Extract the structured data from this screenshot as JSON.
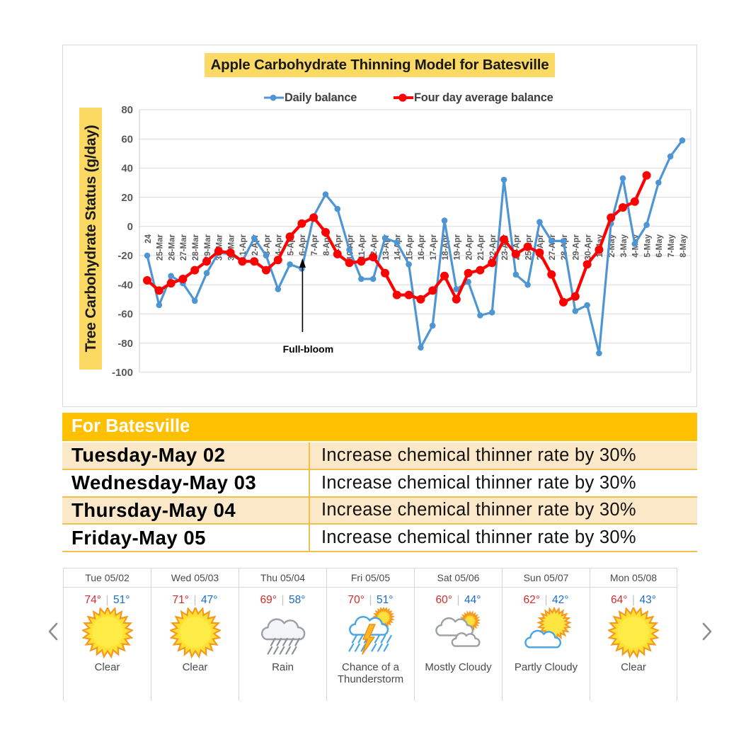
{
  "chart": {
    "title": "Apple Carbohydrate Thinning Model for Batesville",
    "y_axis_label": "Tree Carbohydrate Status (g/day)",
    "annotation_label": "Full-bloom",
    "legend": {
      "daily": "Daily balance",
      "avg": "Four day average balance"
    }
  },
  "chart_data": {
    "type": "line",
    "title": "Apple Carbohydrate Thinning Model for Batesville",
    "ylabel": "Tree Carbohydrate Status (g/day)",
    "xlabel": "",
    "ylim": [
      -100,
      80
    ],
    "ytick_step": 20,
    "grid": true,
    "legend_position": "top",
    "categories": [
      "24",
      "25-Mar",
      "26-Mar",
      "27-Mar",
      "28-Mar",
      "29-Mar",
      "30-Mar",
      "31-Mar",
      "1-Apr",
      "2-Apr",
      "3-Apr",
      "4-Apr",
      "5-Apr",
      "6-Apr",
      "7-Apr",
      "8-Apr",
      "9-Apr",
      "10-Apr",
      "11-Apr",
      "12-Apr",
      "13-Apr",
      "14-Apr",
      "15-Apr",
      "16-Apr",
      "17-Apr",
      "18-Apr",
      "19-Apr",
      "20-Apr",
      "21-Apr",
      "22-Apr",
      "23-Apr",
      "24-Apr",
      "25-Apr",
      "26-Apr",
      "27-Apr",
      "28-Apr",
      "29-Apr",
      "30-Apr",
      "1-May",
      "2-May",
      "3-May",
      "4-May",
      "5-May",
      "6-May",
      "7-May",
      "8-May"
    ],
    "series": [
      {
        "name": "Daily balance",
        "color": "#4E95D4",
        "values": [
          -20,
          -54,
          -34,
          -39,
          -51,
          -32,
          -18,
          -19,
          -24,
          -8,
          -20,
          -43,
          -26,
          -29,
          7,
          22,
          12,
          -16,
          -36,
          -36,
          -8,
          -11,
          -26,
          -83,
          -68,
          4,
          -43,
          -38,
          -61,
          -59,
          32,
          -33,
          -40,
          3,
          -10,
          -10,
          -58,
          -54,
          -87,
          2,
          33,
          -12,
          1,
          30,
          48,
          59
        ]
      },
      {
        "name": "Four day average balance",
        "color": "#FE0000",
        "values": [
          -37,
          -44,
          -39,
          -36,
          -30,
          -24,
          -17,
          -18,
          -24,
          -24,
          -30,
          -23,
          -7,
          2,
          6,
          -4,
          -19,
          -25,
          -24,
          -21,
          -32,
          -47,
          -47,
          -50,
          -44,
          -34,
          -50,
          -32,
          -30,
          -25,
          -9,
          -19,
          -14,
          -18,
          -33,
          -52,
          -48,
          -26,
          -16,
          6,
          13,
          17,
          35
        ]
      }
    ],
    "annotations": [
      {
        "text": "Full-bloom",
        "category": "6-Apr",
        "value_pointed": -23
      }
    ]
  },
  "recommendations": {
    "header": "For Batesville",
    "rows": [
      {
        "day": "Tuesday-May 02",
        "action": "Increase chemical thinner rate by 30%"
      },
      {
        "day": "Wednesday-May 03",
        "action": "Increase chemical thinner rate by 30%"
      },
      {
        "day": "Thursday-May 04",
        "action": "Increase chemical thinner rate by 30%"
      },
      {
        "day": "Friday-May 05",
        "action": "Increase chemical thinner rate by 30%"
      }
    ]
  },
  "weather": {
    "days": [
      {
        "date": "Tue 05/02",
        "high": "74°",
        "low": "51°",
        "condition": "Clear",
        "icon": "sun-icon"
      },
      {
        "date": "Wed 05/03",
        "high": "71°",
        "low": "47°",
        "condition": "Clear",
        "icon": "sun-icon"
      },
      {
        "date": "Thu 05/04",
        "high": "69°",
        "low": "58°",
        "condition": "Rain",
        "icon": "rain-icon"
      },
      {
        "date": "Fri 05/05",
        "high": "70°",
        "low": "51°",
        "condition": "Chance of a Thunderstorm",
        "icon": "thunderstorm-icon"
      },
      {
        "date": "Sat 05/06",
        "high": "60°",
        "low": "44°",
        "condition": "Mostly Cloudy",
        "icon": "mostly-cloudy-icon"
      },
      {
        "date": "Sun 05/07",
        "high": "62°",
        "low": "42°",
        "condition": "Partly Cloudy",
        "icon": "partly-cloudy-icon"
      },
      {
        "date": "Mon 05/08",
        "high": "64°",
        "low": "43°",
        "condition": "Clear",
        "icon": "sun-icon"
      }
    ],
    "temp_separator": "|"
  },
  "colors": {
    "highlight": "#FBD963",
    "table_header": "#FFC000",
    "table_band": "#FBE8C9",
    "table_line": "#F3C04B",
    "grid_line": "#D9D9D9",
    "axis_text": "#595959",
    "temp_high": "#D02C2C",
    "temp_low": "#1B6CC8",
    "daily_series": "#4E95D4",
    "average_series": "#FE0000"
  }
}
